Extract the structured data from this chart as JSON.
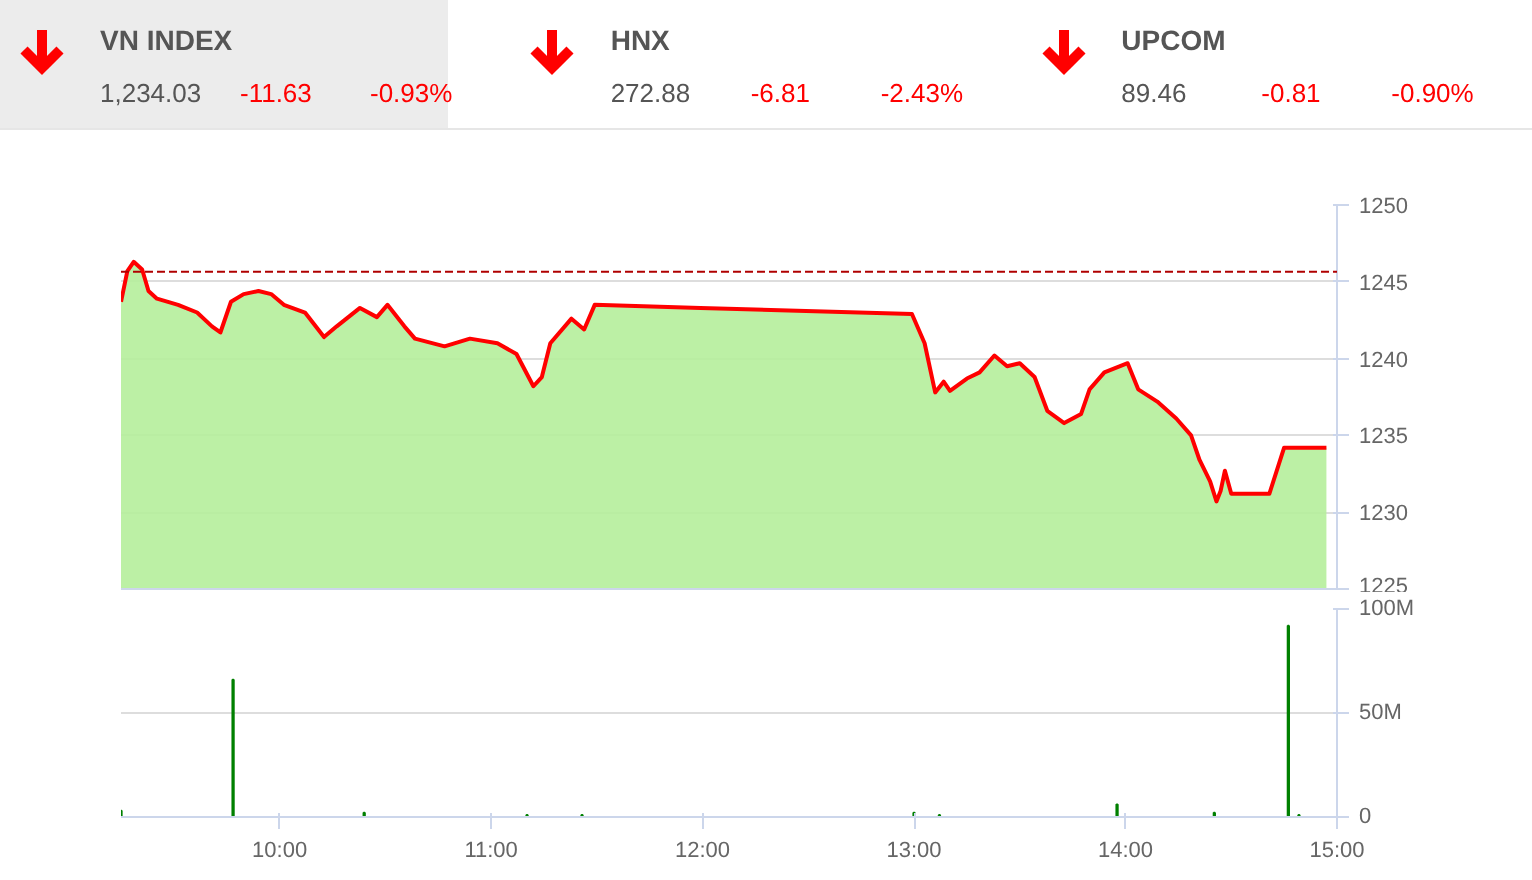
{
  "chart_data": [
    {
      "type": "other",
      "annotations": [
        "VN INDEX",
        "1,234.03",
        "-11.63",
        "-0.93%",
        "HNX",
        "272.88",
        "-6.81",
        "-2.43%",
        "UPCOM",
        "89.46",
        "-0.81",
        "-0.90%"
      ]
    },
    {
      "type": "area",
      "xlim": [
        9.25,
        15
      ],
      "ylim": [
        1225,
        1250
      ],
      "yticks": [
        1225,
        1230,
        1235,
        1240,
        1245,
        1250
      ],
      "grid": "y",
      "tick_labels": "y",
      "line_style": "solid",
      "ref_lines": [
        {
          "axis": "y",
          "value": 1245.66,
          "color": "#b00000",
          "line_style": "dashed"
        }
      ],
      "x": [
        9.25,
        9.28,
        9.31,
        9.35,
        9.38,
        9.42,
        9.52,
        9.61,
        9.68,
        9.72,
        9.77,
        9.83,
        9.9,
        9.96,
        10.02,
        10.12,
        10.21,
        10.27,
        10.38,
        10.46,
        10.51,
        10.59,
        10.64,
        10.78,
        10.9,
        11.03,
        11.12,
        11.2,
        11.24,
        11.28,
        11.38,
        11.44,
        11.49,
        11.99,
        12.99,
        13.05,
        13.1,
        13.14,
        13.17,
        13.25,
        13.31,
        13.38,
        13.44,
        13.5,
        13.57,
        13.63,
        13.71,
        13.79,
        13.83,
        13.9,
        14.01,
        14.06,
        14.15,
        14.24,
        14.31,
        14.35,
        14.4,
        14.43,
        14.45,
        14.47,
        14.5,
        14.68,
        14.75,
        14.95
      ],
      "series": [
        {
          "type": "area",
          "color": "#b5ee9b",
          "values": [
            1243.7,
            1245.7,
            1246.3,
            1245.8,
            1244.4,
            1243.9,
            1243.5,
            1243.0,
            1242.1,
            1241.7,
            1243.7,
            1244.2,
            1244.4,
            1244.2,
            1243.5,
            1243.0,
            1241.4,
            1242.1,
            1243.3,
            1242.7,
            1243.5,
            1242.1,
            1241.3,
            1240.8,
            1241.3,
            1241.0,
            1240.3,
            1238.2,
            1238.8,
            1241.0,
            1242.6,
            1241.9,
            1243.5,
            1243.3,
            1242.9,
            1241.0,
            1237.8,
            1238.5,
            1237.9,
            1238.7,
            1239.1,
            1240.2,
            1239.5,
            1239.7,
            1238.8,
            1236.6,
            1235.8,
            1236.4,
            1238.0,
            1239.1,
            1239.7,
            1238.0,
            1237.2,
            1236.1,
            1235.0,
            1233.4,
            1232.0,
            1230.7,
            1231.4,
            1232.7,
            1231.2,
            1231.2,
            1234.2,
            1234.2
          ]
        },
        {
          "type": "line",
          "color": "#ff0000",
          "values": [
            1243.7,
            1245.7,
            1246.3,
            1245.8,
            1244.4,
            1243.9,
            1243.5,
            1243.0,
            1242.1,
            1241.7,
            1243.7,
            1244.2,
            1244.4,
            1244.2,
            1243.5,
            1243.0,
            1241.4,
            1242.1,
            1243.3,
            1242.7,
            1243.5,
            1242.1,
            1241.3,
            1240.8,
            1241.3,
            1241.0,
            1240.3,
            1238.2,
            1238.8,
            1241.0,
            1242.6,
            1241.9,
            1243.5,
            1243.3,
            1242.9,
            1241.0,
            1237.8,
            1238.5,
            1237.9,
            1238.7,
            1239.1,
            1240.2,
            1239.5,
            1239.7,
            1238.8,
            1236.6,
            1235.8,
            1236.4,
            1238.0,
            1239.1,
            1239.7,
            1238.0,
            1237.2,
            1236.1,
            1235.0,
            1233.4,
            1232.0,
            1230.7,
            1231.4,
            1232.7,
            1231.2,
            1231.2,
            1234.2,
            1234.2
          ]
        }
      ]
    },
    {
      "type": "bar",
      "xlim": [
        9.25,
        15
      ],
      "xticks": [
        {
          "value": 10,
          "label": "10:00"
        },
        {
          "value": 11,
          "label": "11:00"
        },
        {
          "value": 12,
          "label": "12:00"
        },
        {
          "value": 13,
          "label": "13:00"
        },
        {
          "value": 14,
          "label": "14:00"
        },
        {
          "value": 15,
          "label": "15:00"
        }
      ],
      "ylim": [
        0,
        100
      ],
      "yticks": [
        0,
        {
          "value": 50,
          "label": "50M"
        },
        {
          "value": 100,
          "label": "100M"
        }
      ],
      "grid": "y",
      "series": [
        {
          "color": "#008000",
          "x": [
            9.25,
            9.78,
            10.4,
            11.17,
            11.43,
            13.0,
            13.12,
            13.96,
            14.42,
            14.77,
            14.82
          ],
          "values": [
            3,
            66,
            2,
            1,
            1,
            2,
            1,
            6,
            2,
            92,
            1
          ]
        }
      ]
    }
  ]
}
